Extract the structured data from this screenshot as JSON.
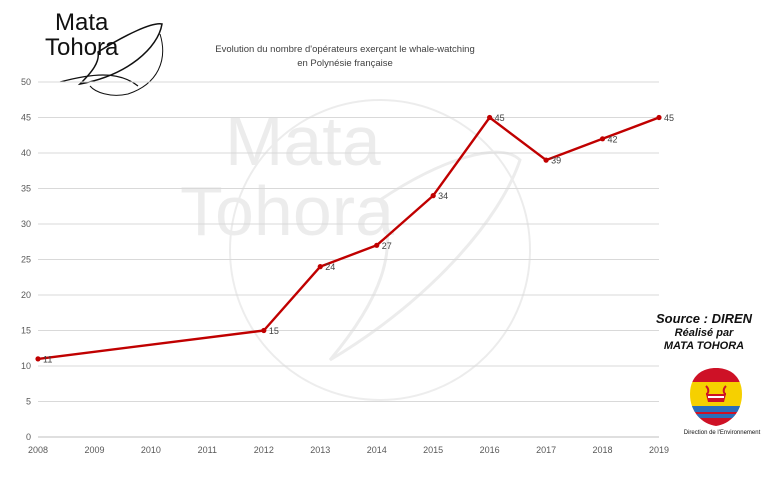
{
  "logo": {
    "line1": "Mata",
    "line2": "Tohora"
  },
  "watermark": {
    "line1": "Mata",
    "line2": "Tohora"
  },
  "credits": {
    "source": "Source : DIREN",
    "made_by": "Réalisé par",
    "author": "MATA TOHORA",
    "agency": "Direction de l'Environnement"
  },
  "chart_data": {
    "type": "line",
    "title": "Evolution du nombre d'opérateurs exerçant le whale-watching",
    "subtitle": "en Polynésie française",
    "xlabel": "",
    "ylabel": "",
    "x_ticks": [
      "2008",
      "2009",
      "2010",
      "2011",
      "2012",
      "2013",
      "2014",
      "2015",
      "2016",
      "2017",
      "2018",
      "2019"
    ],
    "xlim": [
      2008,
      2019
    ],
    "ylim": [
      0,
      50
    ],
    "y_ticks": [
      0,
      5,
      10,
      15,
      20,
      25,
      30,
      35,
      40,
      45,
      50
    ],
    "grid": true,
    "legend": "none",
    "series": [
      {
        "color": "#c00000",
        "points": [
          {
            "x": 2008,
            "y": 11
          },
          {
            "x": 2012,
            "y": 15
          },
          {
            "x": 2013,
            "y": 24
          },
          {
            "x": 2014,
            "y": 27
          },
          {
            "x": 2015,
            "y": 34
          },
          {
            "x": 2016,
            "y": 45
          },
          {
            "x": 2017,
            "y": 39
          },
          {
            "x": 2018,
            "y": 42
          },
          {
            "x": 2019,
            "y": 45
          }
        ]
      }
    ]
  }
}
